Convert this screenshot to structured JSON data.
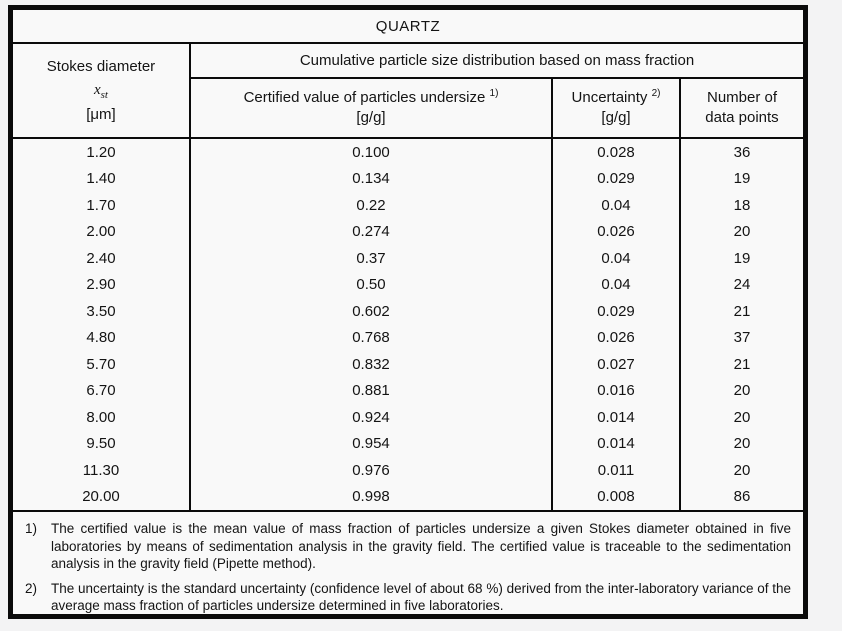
{
  "title": "QUARTZ",
  "header": {
    "stokes": {
      "line1": "Stokes diameter",
      "symbol": "x",
      "symbol_sub": "st",
      "unit": "[μm]"
    },
    "group_label": "Cumulative particle size distribution based on mass fraction",
    "certified": {
      "label": "Certified value of particles undersize",
      "sup": "1)",
      "unit": "[g/g]"
    },
    "uncertainty": {
      "label": "Uncertainty",
      "sup": "2)",
      "unit": "[g/g]"
    },
    "points": {
      "line1": "Number of",
      "line2": "data points"
    }
  },
  "table": {
    "rows": [
      [
        "1.20",
        "0.100",
        "0.028",
        "36"
      ],
      [
        "1.40",
        "0.134",
        "0.029",
        "19"
      ],
      [
        "1.70",
        "0.22",
        "0.04",
        "18"
      ],
      [
        "2.00",
        "0.274",
        "0.026",
        "20"
      ],
      [
        "2.40",
        "0.37",
        "0.04",
        "19"
      ],
      [
        "2.90",
        "0.50",
        "0.04",
        "24"
      ],
      [
        "3.50",
        "0.602",
        "0.029",
        "21"
      ],
      [
        "4.80",
        "0.768",
        "0.026",
        "37"
      ],
      [
        "5.70",
        "0.832",
        "0.027",
        "21"
      ],
      [
        "6.70",
        "0.881",
        "0.016",
        "20"
      ],
      [
        "8.00",
        "0.924",
        "0.014",
        "20"
      ],
      [
        "9.50",
        "0.954",
        "0.014",
        "20"
      ],
      [
        "11.30",
        "0.976",
        "0.011",
        "20"
      ],
      [
        "20.00",
        "0.998",
        "0.008",
        "86"
      ]
    ]
  },
  "footnotes": [
    {
      "num": "1)",
      "text": "The certified value is the mean value of mass fraction of particles undersize a given Stokes diameter obtained in five laboratories by means of sedimentation analysis in the gravity field. The certified value is traceable to the sedimentation analysis in the gravity field (Pipette method)."
    },
    {
      "num": "2)",
      "text": "The uncertainty is the standard uncertainty (confidence level of about 68 %) derived from the inter-laboratory variance of the average mass fraction of particles undersize determined in five laboratories."
    }
  ],
  "colors": {
    "border": "#0b0b0b",
    "paper": "#f9f9f9",
    "page_background": "#f3f3f4",
    "text": "#141414"
  }
}
